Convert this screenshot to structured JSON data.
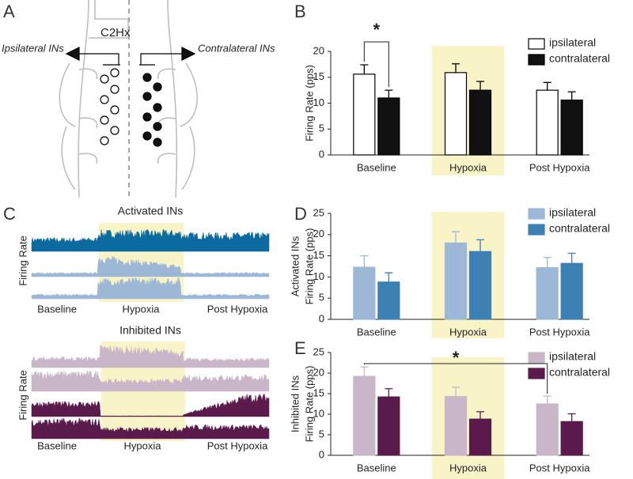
{
  "panel_labels": [
    "A",
    "B",
    "C",
    "D",
    "E"
  ],
  "diagram": {
    "lesion": "C2Hx",
    "left": "Ipsilateral INs",
    "right": "Contralateral INs"
  },
  "traces": [
    {
      "title": "Activated INs",
      "ylabel": "Firing Rate",
      "xlabels": [
        "Baseline",
        "Hypoxia",
        "Post Hypoxia"
      ]
    },
    {
      "title": "Inhibited INs",
      "ylabel": "Firing Rate",
      "xlabels": [
        "Baseline",
        "Hypoxia",
        "Post Hypoxia"
      ]
    }
  ],
  "chart_data": [
    {
      "type": "bar",
      "ylabel": [
        "Firing Rate (pps)"
      ],
      "categories": [
        "Baseline",
        "Hypoxia",
        "Post Hypoxia"
      ],
      "ylim": [
        0,
        20
      ],
      "yticks": [
        0,
        5,
        10,
        15,
        20
      ],
      "highlight": 1,
      "legend": "upper-right",
      "annotations": [
        "*"
      ],
      "series": [
        {
          "name": "ipsilateral",
          "color": "#ffffff",
          "edge": "#000000",
          "values": [
            15.6,
            15.9,
            12.5
          ],
          "errors": [
            1.8,
            1.7,
            1.5
          ]
        },
        {
          "name": "contralateral",
          "color": "#111111",
          "edge": "#000000",
          "values": [
            11.0,
            12.5,
            10.6
          ],
          "errors": [
            1.5,
            1.7,
            1.6
          ]
        }
      ]
    },
    {
      "type": "bar",
      "ylabel": [
        "Activated INs",
        "Firing Rate (pps)"
      ],
      "categories": [
        "Baseline",
        "Hypoxia",
        "Post Hypoxia"
      ],
      "ylim": [
        0,
        25
      ],
      "yticks": [
        0,
        5,
        10,
        15,
        20,
        25
      ],
      "highlight": 1,
      "legend": "upper-right",
      "annotations": [],
      "series": [
        {
          "name": "ipsilateral",
          "color": "#9db8d6",
          "edge": "#9db8d6",
          "values": [
            12.3,
            18.0,
            12.2
          ],
          "errors": [
            2.7,
            2.7,
            2.4
          ]
        },
        {
          "name": "contralateral",
          "color": "#3d80b3",
          "edge": "#3d80b3",
          "values": [
            8.8,
            16.0,
            13.2
          ],
          "errors": [
            2.2,
            2.8,
            2.4
          ]
        }
      ]
    },
    {
      "type": "bar",
      "ylabel": [
        "Inhibited INs",
        "Firing Rate (pps)"
      ],
      "categories": [
        "Baseline",
        "Hypoxia",
        "Post Hypoxia"
      ],
      "ylim": [
        0,
        25
      ],
      "yticks": [
        0,
        5,
        10,
        15,
        20,
        25
      ],
      "highlight": 1,
      "legend": "upper-right",
      "annotations": [
        "*"
      ],
      "series": [
        {
          "name": "ipsilateral",
          "color": "#c9b7c9",
          "edge": "#c9b7c9",
          "values": [
            19.2,
            14.3,
            12.5
          ],
          "errors": [
            2.3,
            2.3,
            1.9
          ]
        },
        {
          "name": "contralateral",
          "color": "#5b1a4c",
          "edge": "#5b1a4c",
          "values": [
            14.2,
            8.8,
            8.2
          ],
          "errors": [
            2.0,
            1.8,
            1.9
          ]
        }
      ]
    }
  ]
}
